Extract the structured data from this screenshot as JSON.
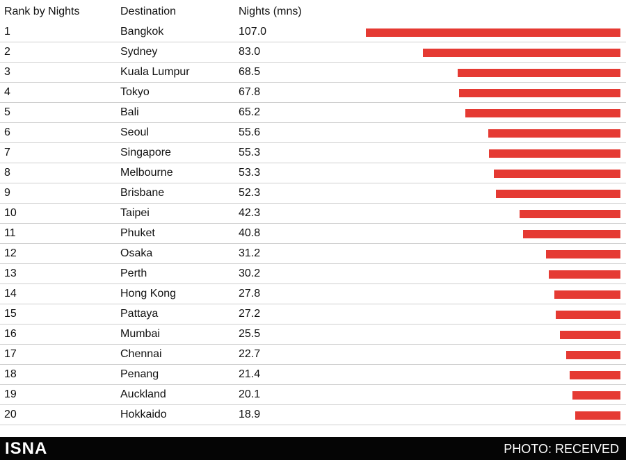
{
  "chart_data": {
    "type": "bar",
    "columns": [
      "Rank by Nights",
      "Destination",
      "Nights (mns)"
    ],
    "rows": [
      {
        "rank": "1",
        "destination": "Bangkok",
        "value_label": "107.0",
        "value": 107.0
      },
      {
        "rank": "2",
        "destination": "Sydney",
        "value_label": "83.0",
        "value": 83.0
      },
      {
        "rank": "3",
        "destination": "Kuala Lumpur",
        "value_label": "68.5",
        "value": 68.5
      },
      {
        "rank": "4",
        "destination": "Tokyo",
        "value_label": "67.8",
        "value": 67.8
      },
      {
        "rank": "5",
        "destination": "Bali",
        "value_label": "65.2",
        "value": 65.2
      },
      {
        "rank": "6",
        "destination": "Seoul",
        "value_label": "55.6",
        "value": 55.6
      },
      {
        "rank": "7",
        "destination": "Singapore",
        "value_label": "55.3",
        "value": 55.3
      },
      {
        "rank": "8",
        "destination": "Melbourne",
        "value_label": "53.3",
        "value": 53.3
      },
      {
        "rank": "9",
        "destination": "Brisbane",
        "value_label": "52.3",
        "value": 52.3
      },
      {
        "rank": "10",
        "destination": "Taipei",
        "value_label": "42.3",
        "value": 42.3
      },
      {
        "rank": "11",
        "destination": "Phuket",
        "value_label": "40.8",
        "value": 40.8
      },
      {
        "rank": "12",
        "destination": "Osaka",
        "value_label": "31.2",
        "value": 31.2
      },
      {
        "rank": "13",
        "destination": "Perth",
        "value_label": "30.2",
        "value": 30.2
      },
      {
        "rank": "14",
        "destination": "Hong Kong",
        "value_label": "27.8",
        "value": 27.8
      },
      {
        "rank": "15",
        "destination": "Pattaya",
        "value_label": "27.2",
        "value": 27.2
      },
      {
        "rank": "16",
        "destination": "Mumbai",
        "value_label": "25.5",
        "value": 25.5
      },
      {
        "rank": "17",
        "destination": "Chennai",
        "value_label": "22.7",
        "value": 22.7
      },
      {
        "rank": "18",
        "destination": "Penang",
        "value_label": "21.4",
        "value": 21.4
      },
      {
        "rank": "19",
        "destination": "Auckland",
        "value_label": "20.1",
        "value": 20.1
      },
      {
        "rank": "20",
        "destination": "Hokkaido",
        "value_label": "18.9",
        "value": 18.9
      }
    ],
    "bar_color": "#e53a33",
    "bar_alignment": "right",
    "xlim": [
      0,
      107.0
    ]
  },
  "footer": {
    "logo": "ISNA",
    "credit": "PHOTO: RECEIVED"
  }
}
